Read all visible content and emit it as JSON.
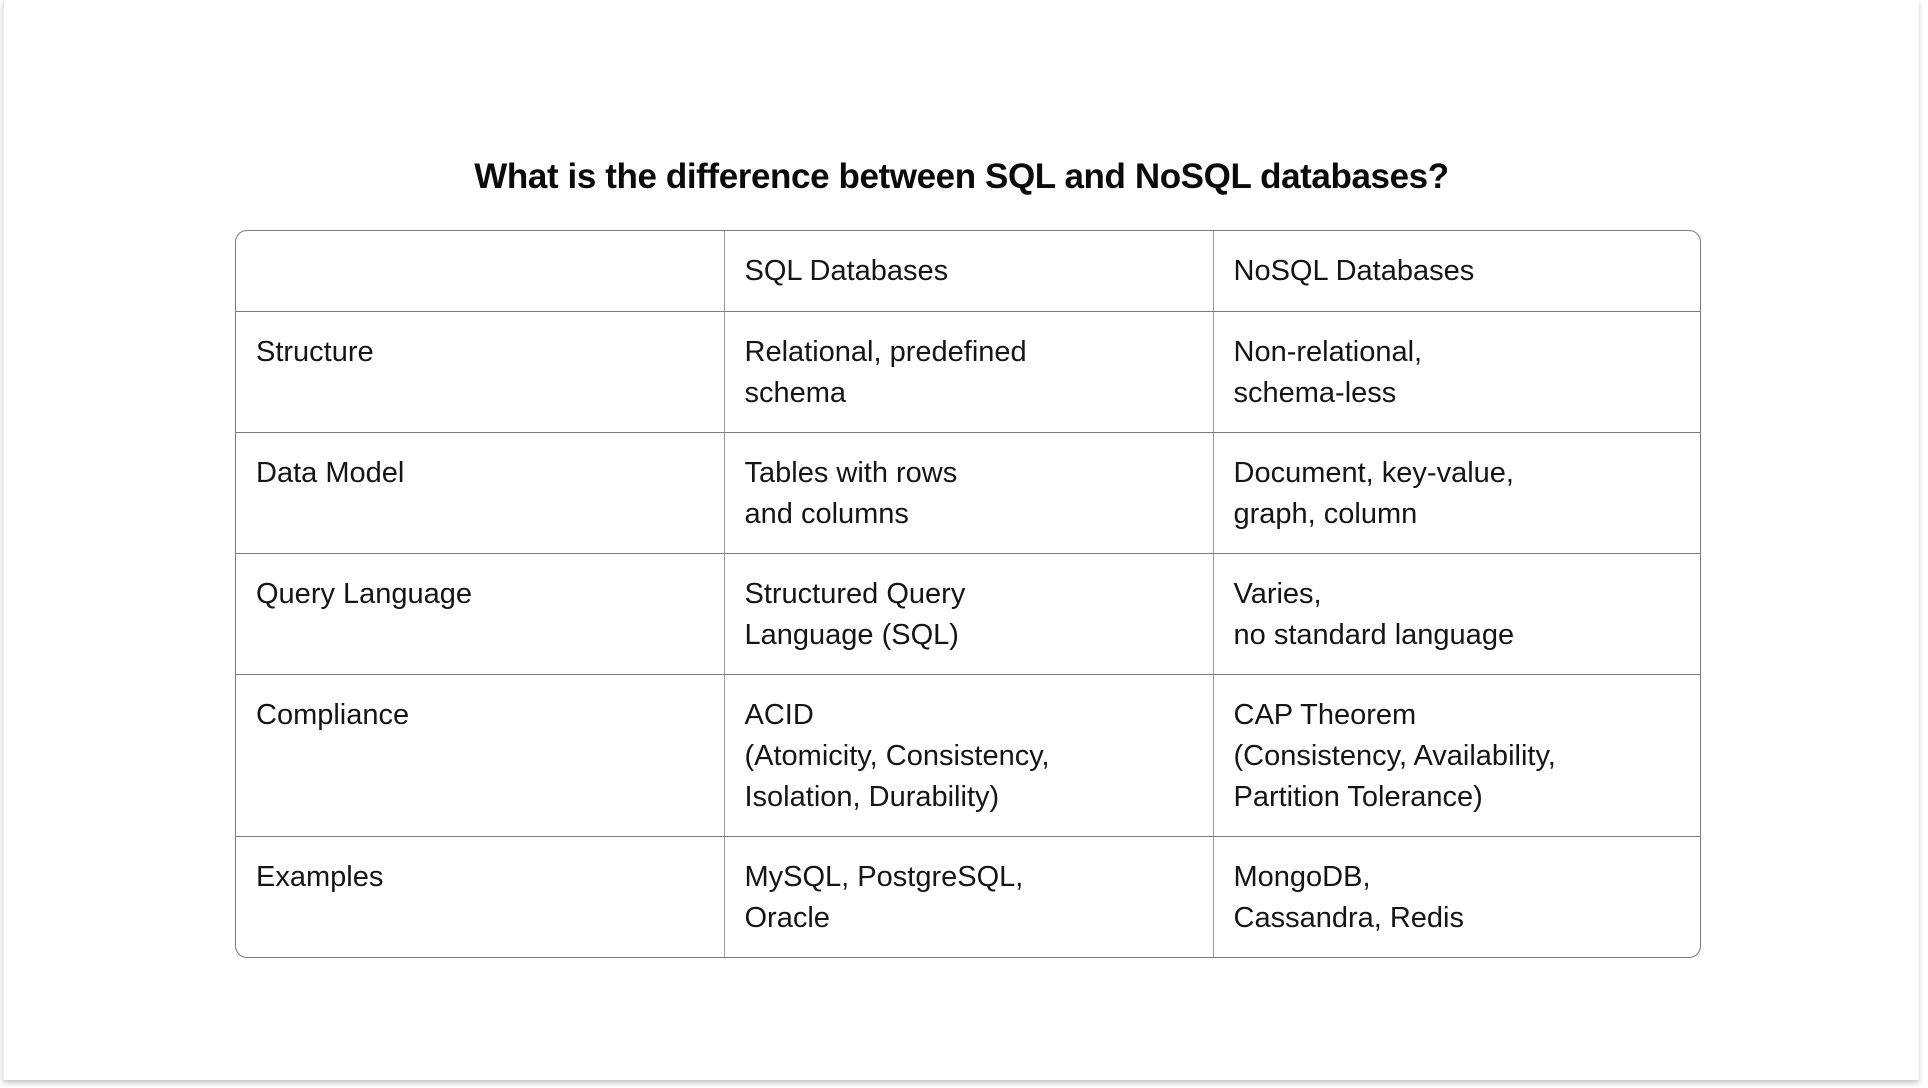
{
  "title": "What is the difference between SQL and NoSQL databases?",
  "table": {
    "headers": [
      "",
      "SQL Databases",
      "NoSQL Databases"
    ],
    "rows": [
      {
        "label": "Structure",
        "sql": [
          "Relational, predefined",
          "schema"
        ],
        "nosql": [
          "Non-relational,",
          "schema-less"
        ]
      },
      {
        "label": "Data Model",
        "sql": [
          "Tables with rows",
          "and columns"
        ],
        "nosql": [
          "Document, key-value,",
          "graph, column"
        ]
      },
      {
        "label": "Query Language",
        "sql": [
          "Structured Query",
          "Language (SQL)"
        ],
        "nosql": [
          "Varies,",
          "no standard language"
        ]
      },
      {
        "label": "Compliance",
        "sql": [
          "ACID",
          "(Atomicity, Consistency,",
          "Isolation, Durability)"
        ],
        "nosql": [
          "CAP Theorem",
          "(Consistency, Availability,",
          "Partition Tolerance)"
        ]
      },
      {
        "label": "Examples",
        "sql": [
          "MySQL, PostgreSQL,",
          "Oracle"
        ],
        "nosql": [
          "MongoDB,",
          "Cassandra, Redis"
        ]
      }
    ]
  },
  "colors": {
    "border": "#7a7a7a",
    "text": "#151515",
    "background": "#ffffff"
  }
}
